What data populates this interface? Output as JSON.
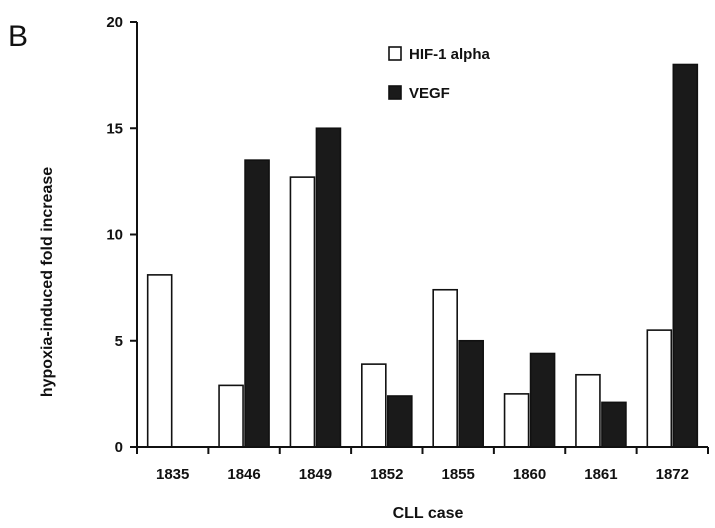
{
  "panel_label": "B",
  "chart_data": {
    "type": "bar",
    "title": "",
    "xlabel": "CLL case",
    "ylabel": "hypoxia-induced fold increase",
    "ylim": [
      0,
      20
    ],
    "yticks": [
      0,
      5,
      10,
      15,
      20
    ],
    "grid": false,
    "legend_position": "top-right",
    "categories": [
      "1835",
      "1846",
      "1849",
      "1852",
      "1855",
      "1860",
      "1861",
      "1872"
    ],
    "series": [
      {
        "name": "HIF-1 alpha",
        "color": "#ffffff",
        "values": [
          8.1,
          2.9,
          12.7,
          3.9,
          7.4,
          2.5,
          3.4,
          5.5
        ]
      },
      {
        "name": "VEGF",
        "color": "#1a1a1a",
        "values": [
          0,
          13.5,
          15.0,
          2.4,
          5.0,
          4.4,
          2.1,
          18.0
        ]
      }
    ]
  }
}
